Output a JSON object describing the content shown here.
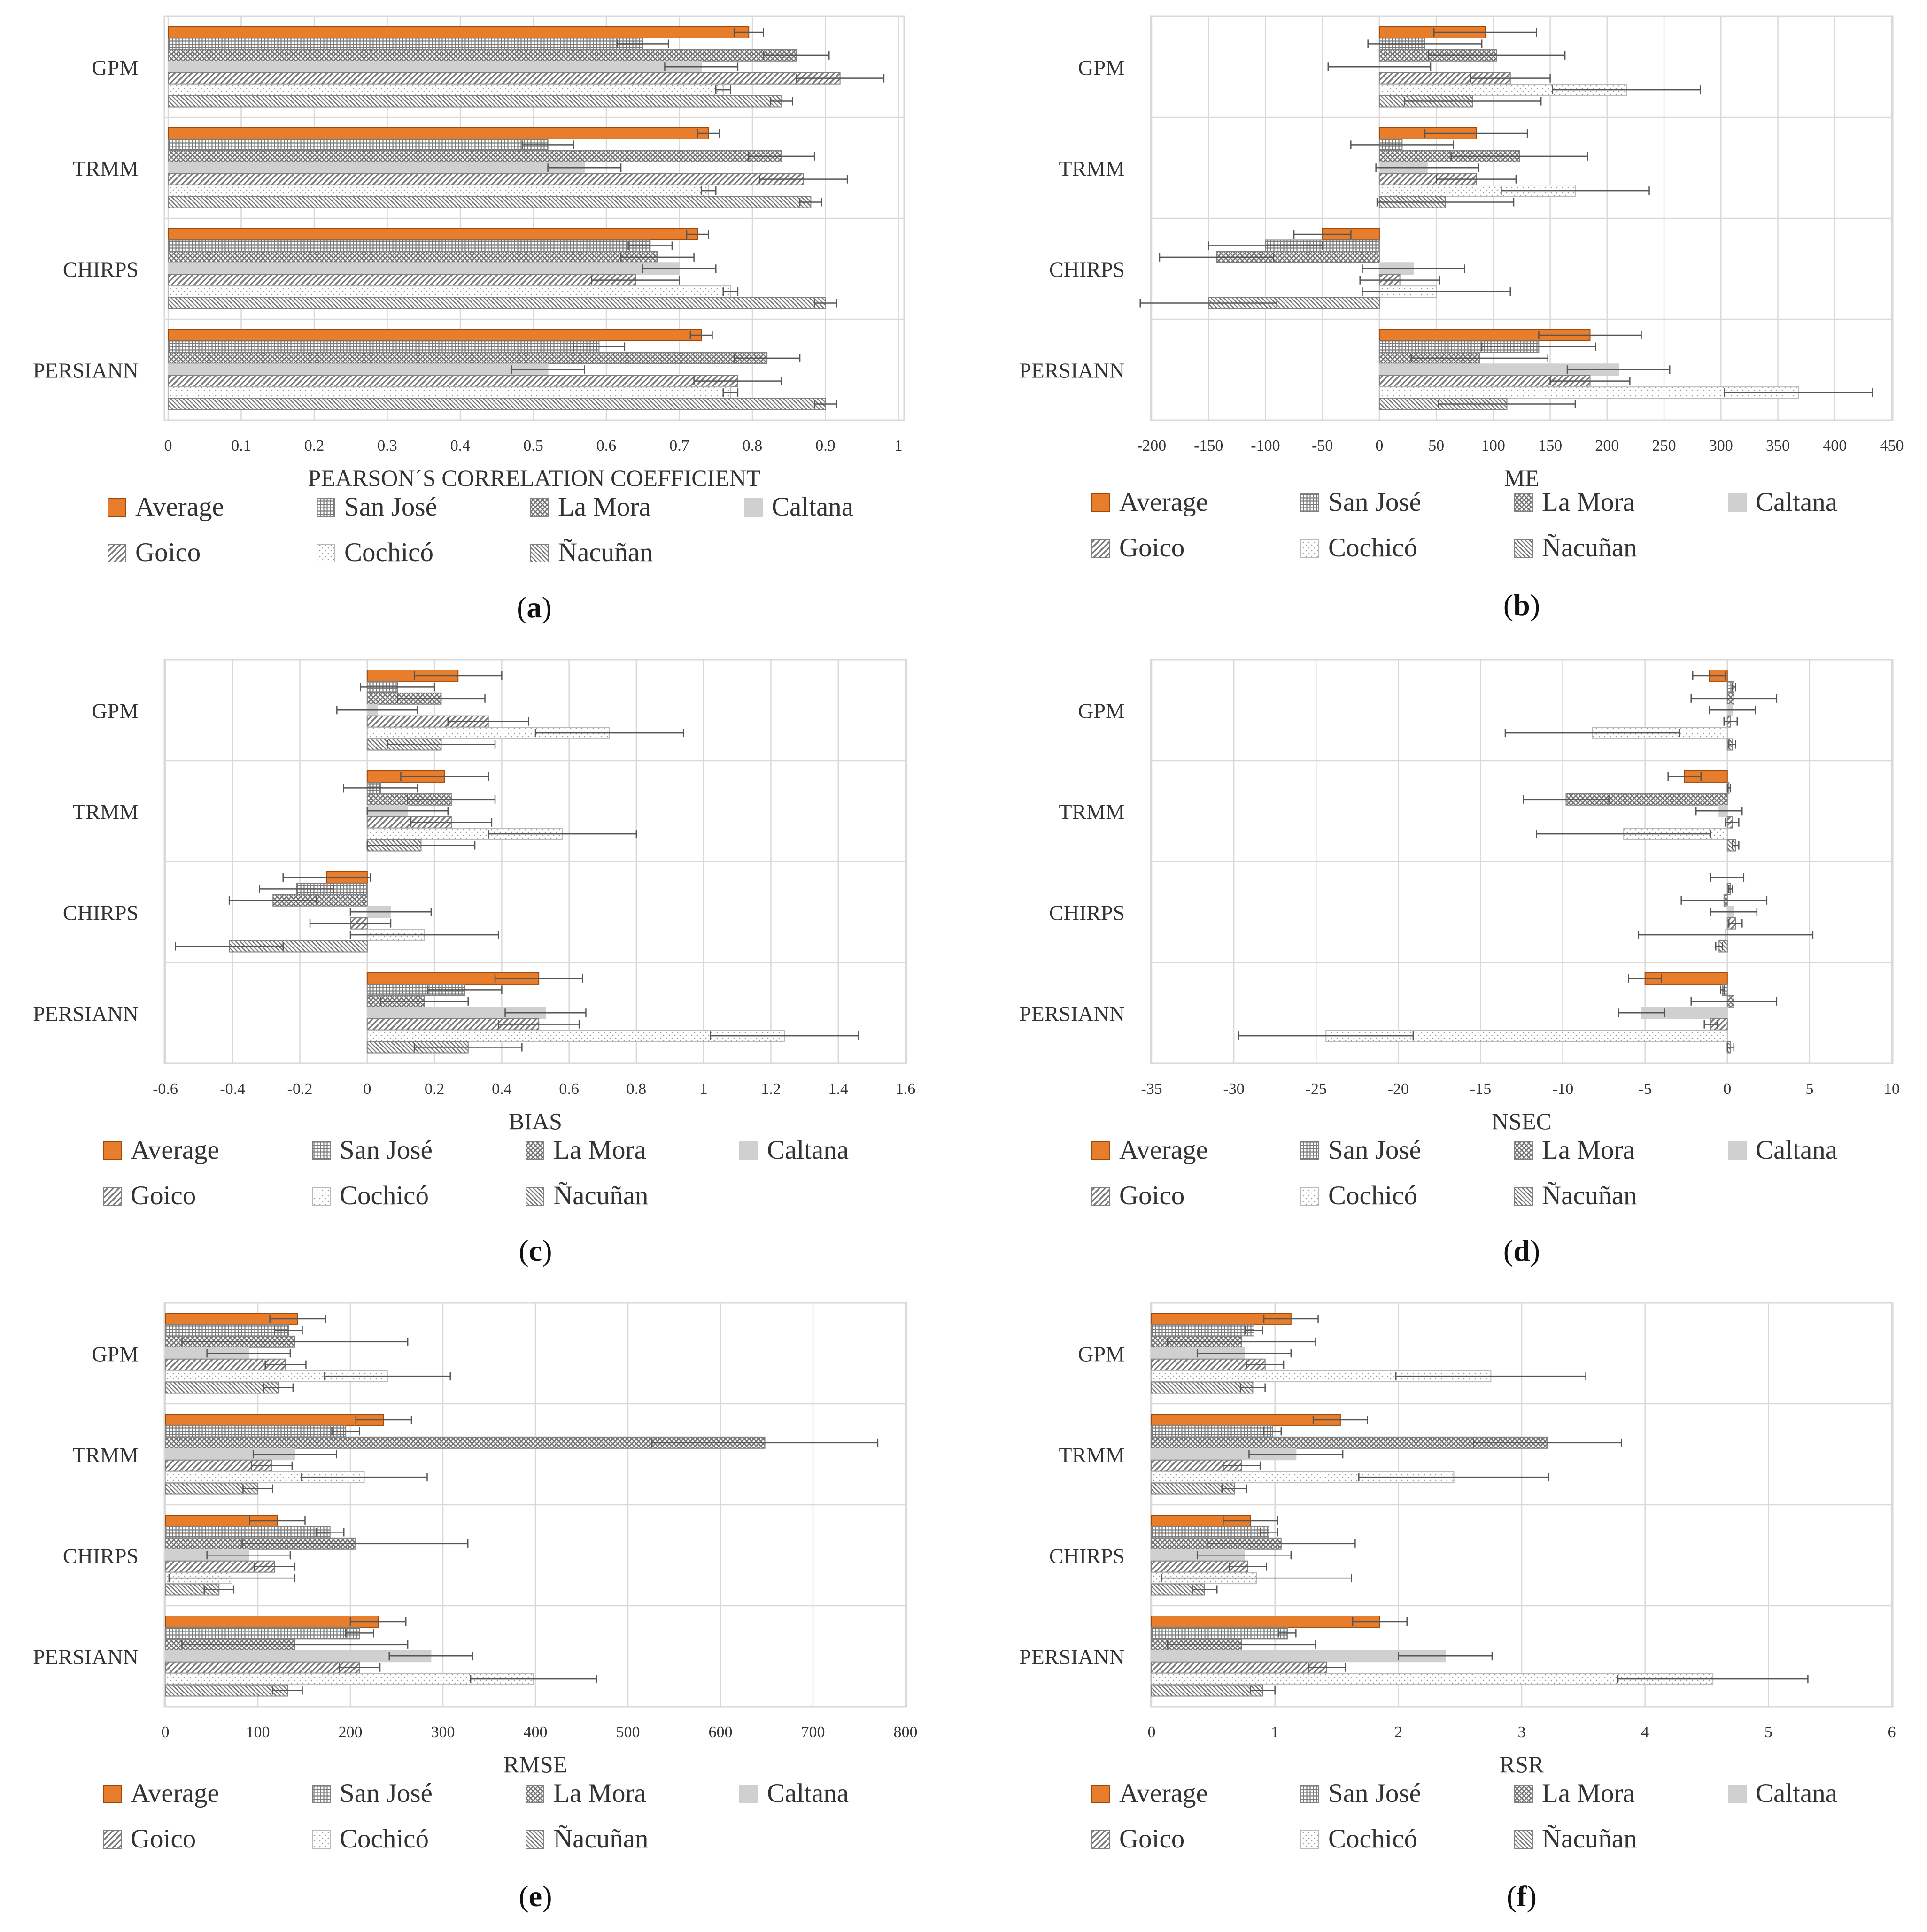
{
  "colors": {
    "average": "#E87D2C",
    "average_edge": "#9A4A10",
    "pattern": "#808080",
    "pattern_light": "#b9b9b9",
    "caltana": "#d0d0d0",
    "grid": "#d9d9d9",
    "frame": "#d9d9d9",
    "errorbar": "#555555"
  },
  "legend_labels": [
    "Average",
    "San José",
    "La Mora",
    "Caltana",
    "Goico",
    "Cochicó",
    "Ñacuñan"
  ],
  "chart_data": [
    {
      "id": "a",
      "type": "bar",
      "orientation": "horizontal",
      "panel_label": "(a)",
      "xlabel": "PEARSON´S CORRELATION COEFFICIENT",
      "xlim": [
        0,
        1
      ],
      "ticks": [
        0,
        0.1,
        0.2,
        0.3,
        0.4,
        0.5,
        0.6,
        0.7,
        0.8,
        0.9,
        1
      ],
      "tick_labels": [
        "0",
        "0.1",
        "0.2",
        "0.3",
        "0.4",
        "0.5",
        "0.6",
        "0.7",
        "0.8",
        "0.9",
        "1"
      ],
      "categories": [
        "GPM",
        "TRMM",
        "CHIRPS",
        "PERSIANN"
      ],
      "series": [
        {
          "name": "Average",
          "values": [
            0.795,
            0.74,
            0.725,
            0.73
          ],
          "errors": [
            0.02,
            0.015,
            0.015,
            0.015
          ]
        },
        {
          "name": "San José",
          "values": [
            0.65,
            0.52,
            0.66,
            0.59
          ],
          "errors": [
            0.035,
            0.035,
            0.03,
            0.035
          ]
        },
        {
          "name": "La Mora",
          "values": [
            0.86,
            0.84,
            0.67,
            0.82
          ],
          "errors": [
            0.045,
            0.045,
            0.05,
            0.045
          ]
        },
        {
          "name": "Caltana",
          "values": [
            0.73,
            0.57,
            0.7,
            0.52
          ],
          "errors": [
            0.05,
            0.05,
            0.05,
            0.05
          ]
        },
        {
          "name": "Goico",
          "values": [
            0.92,
            0.87,
            0.64,
            0.78
          ],
          "errors": [
            0.06,
            0.06,
            0.06,
            0.06
          ]
        },
        {
          "name": "Cochicó",
          "values": [
            0.76,
            0.74,
            0.77,
            0.77
          ],
          "errors": [
            0.01,
            0.01,
            0.01,
            0.01
          ]
        },
        {
          "name": "Ñacuñan",
          "values": [
            0.84,
            0.88,
            0.9,
            0.9
          ],
          "errors": [
            0.015,
            0.015,
            0.015,
            0.015
          ]
        }
      ]
    },
    {
      "id": "b",
      "type": "bar",
      "orientation": "horizontal",
      "panel_label": "(b)",
      "xlabel": "ME",
      "xlim": [
        -200,
        450
      ],
      "ticks": [
        -200,
        -150,
        -100,
        -50,
        0,
        50,
        100,
        150,
        200,
        250,
        300,
        350,
        400,
        450
      ],
      "tick_labels": [
        "-200",
        "-150",
        "-100",
        "-50",
        "0",
        "50",
        "100",
        "150",
        "200",
        "250",
        "300",
        "350",
        "400",
        "450"
      ],
      "categories": [
        "GPM",
        "TRMM",
        "CHIRPS",
        "PERSIANN"
      ],
      "series": [
        {
          "name": "Average",
          "values": [
            93,
            85,
            -50,
            185
          ],
          "errors": [
            45,
            45,
            25,
            45
          ]
        },
        {
          "name": "San José",
          "values": [
            40,
            20,
            -100,
            140
          ],
          "errors": [
            50,
            45,
            50,
            50
          ]
        },
        {
          "name": "La Mora",
          "values": [
            103,
            123,
            -143,
            88
          ],
          "errors": [
            60,
            60,
            50,
            60
          ]
        },
        {
          "name": "Caltana",
          "values": [
            0,
            42,
            30,
            210
          ],
          "errors": [
            45,
            45,
            45,
            45
          ]
        },
        {
          "name": "Goico",
          "values": [
            115,
            85,
            18,
            185
          ],
          "errors": [
            35,
            35,
            35,
            35
          ]
        },
        {
          "name": "Cochicó",
          "values": [
            217,
            172,
            50,
            368
          ],
          "errors": [
            65,
            65,
            65,
            65
          ]
        },
        {
          "name": "Ñacuñan",
          "values": [
            82,
            58,
            -150,
            112
          ],
          "errors": [
            60,
            60,
            60,
            60
          ]
        }
      ]
    },
    {
      "id": "c",
      "type": "bar",
      "orientation": "horizontal",
      "panel_label": "(c)",
      "xlabel": "BIAS",
      "xlim": [
        -0.6,
        1.6
      ],
      "ticks": [
        -0.6,
        -0.4,
        -0.2,
        0,
        0.2,
        0.4,
        0.6,
        0.8,
        1,
        1.2,
        1.4,
        1.6
      ],
      "tick_labels": [
        "-0.6",
        "-0.4",
        "-0.2",
        "0",
        "0.2",
        "0.4",
        "0.6",
        "0.8",
        "1",
        "1.2",
        "1.4",
        "1.6"
      ],
      "categories": [
        "GPM",
        "TRMM",
        "CHIRPS",
        "PERSIANN"
      ],
      "series": [
        {
          "name": "Average",
          "values": [
            0.27,
            0.23,
            -0.12,
            0.51
          ],
          "errors": [
            0.13,
            0.13,
            0.13,
            0.13
          ]
        },
        {
          "name": "San José",
          "values": [
            0.09,
            0.04,
            -0.21,
            0.29
          ],
          "errors": [
            0.11,
            0.11,
            0.11,
            0.11
          ]
        },
        {
          "name": "La Mora",
          "values": [
            0.22,
            0.25,
            -0.28,
            0.17
          ],
          "errors": [
            0.13,
            0.13,
            0.13,
            0.13
          ]
        },
        {
          "name": "Caltana",
          "values": [
            0.03,
            0.12,
            0.07,
            0.53
          ],
          "errors": [
            0.12,
            0.12,
            0.12,
            0.12
          ]
        },
        {
          "name": "Goico",
          "values": [
            0.36,
            0.25,
            -0.05,
            0.51
          ],
          "errors": [
            0.12,
            0.12,
            0.12,
            0.12
          ]
        },
        {
          "name": "Cochicó",
          "values": [
            0.72,
            0.58,
            0.17,
            1.24
          ],
          "errors": [
            0.22,
            0.22,
            0.22,
            0.22
          ]
        },
        {
          "name": "Ñacuñan",
          "values": [
            0.22,
            0.16,
            -0.41,
            0.3
          ],
          "errors": [
            0.16,
            0.16,
            0.16,
            0.16
          ]
        }
      ]
    },
    {
      "id": "d",
      "type": "bar",
      "orientation": "horizontal",
      "panel_label": "(d)",
      "xlabel": "NSEC",
      "xlim": [
        -35,
        10
      ],
      "ticks": [
        -35,
        -30,
        -25,
        -20,
        -15,
        -10,
        -5,
        0,
        5,
        10
      ],
      "tick_labels": [
        "-35",
        "-30",
        "-25",
        "-20",
        "-15",
        "-10",
        "-5",
        "0",
        "5",
        "10"
      ],
      "categories": [
        "GPM",
        "TRMM",
        "CHIRPS",
        "PERSIANN"
      ],
      "series": [
        {
          "name": "Average",
          "values": [
            -1.1,
            -2.6,
            0,
            -5
          ],
          "errors": [
            1,
            1,
            1,
            1
          ]
        },
        {
          "name": "San José",
          "values": [
            0.4,
            0.1,
            0.2,
            -0.3
          ],
          "errors": [
            0.1,
            0.1,
            0.1,
            0.1
          ]
        },
        {
          "name": "La Mora",
          "values": [
            0.4,
            -9.8,
            -0.2,
            0.4
          ],
          "errors": [
            2.6,
            2.6,
            2.6,
            2.6
          ]
        },
        {
          "name": "Caltana",
          "values": [
            0.3,
            -0.5,
            0.4,
            -5.2
          ],
          "errors": [
            1.4,
            1.4,
            1.4,
            1.4
          ]
        },
        {
          "name": "Goico",
          "values": [
            0.2,
            0.3,
            0.5,
            -1
          ],
          "errors": [
            0.4,
            0.4,
            0.4,
            0.4
          ]
        },
        {
          "name": "Cochicó",
          "values": [
            -8.2,
            -6.3,
            -0.1,
            -24.4
          ],
          "errors": [
            5.3,
            5.3,
            5.3,
            5.3
          ]
        },
        {
          "name": "Ñacuñan",
          "values": [
            0.3,
            0.5,
            -0.5,
            0.2
          ],
          "errors": [
            0.2,
            0.2,
            0.2,
            0.2
          ]
        }
      ]
    },
    {
      "id": "e",
      "type": "bar",
      "orientation": "horizontal",
      "panel_label": "(e)",
      "xlabel": "RMSE",
      "xlim": [
        0,
        800
      ],
      "ticks": [
        0,
        100,
        200,
        300,
        400,
        500,
        600,
        700,
        800
      ],
      "tick_labels": [
        "0",
        "100",
        "200",
        "300",
        "400",
        "500",
        "600",
        "700",
        "800"
      ],
      "categories": [
        "GPM",
        "TRMM",
        "CHIRPS",
        "PERSIANN"
      ],
      "series": [
        {
          "name": "Average",
          "values": [
            143,
            236,
            121,
            230
          ],
          "errors": [
            30,
            30,
            30,
            30
          ]
        },
        {
          "name": "San José",
          "values": [
            133,
            195,
            178,
            210
          ],
          "errors": [
            15,
            15,
            15,
            15
          ]
        },
        {
          "name": "La Mora",
          "values": [
            140,
            648,
            205,
            140
          ],
          "errors": [
            122,
            122,
            122,
            122
          ]
        },
        {
          "name": "Caltana",
          "values": [
            90,
            140,
            90,
            287
          ],
          "errors": [
            45,
            45,
            45,
            45
          ]
        },
        {
          "name": "Goico",
          "values": [
            130,
            115,
            118,
            210
          ],
          "errors": [
            22,
            22,
            22,
            22
          ]
        },
        {
          "name": "Cochicó",
          "values": [
            240,
            215,
            72,
            398
          ],
          "errors": [
            68,
            68,
            68,
            68
          ]
        },
        {
          "name": "Ñacuñan",
          "values": [
            122,
            100,
            58,
            132
          ],
          "errors": [
            16,
            16,
            16,
            16
          ]
        }
      ]
    },
    {
      "id": "f",
      "type": "bar",
      "orientation": "horizontal",
      "panel_label": "(f)",
      "xlabel": "RSR",
      "xlim": [
        0,
        6
      ],
      "ticks": [
        0,
        1,
        2,
        3,
        4,
        5,
        6
      ],
      "tick_labels": [
        "0",
        "1",
        "2",
        "3",
        "4",
        "5",
        "6"
      ],
      "categories": [
        "GPM",
        "TRMM",
        "CHIRPS",
        "PERSIANN"
      ],
      "series": [
        {
          "name": "Average",
          "values": [
            1.13,
            1.53,
            0.8,
            1.85
          ],
          "errors": [
            0.22,
            0.22,
            0.22,
            0.22
          ]
        },
        {
          "name": "San José",
          "values": [
            0.83,
            0.98,
            0.95,
            1.1
          ],
          "errors": [
            0.07,
            0.07,
            0.07,
            0.07
          ]
        },
        {
          "name": "La Mora",
          "values": [
            0.73,
            3.21,
            1.05,
            0.73
          ],
          "errors": [
            0.6,
            0.6,
            0.6,
            0.6
          ]
        },
        {
          "name": "Caltana",
          "values": [
            0.75,
            1.17,
            0.75,
            2.38
          ],
          "errors": [
            0.38,
            0.38,
            0.38,
            0.38
          ]
        },
        {
          "name": "Goico",
          "values": [
            0.92,
            0.73,
            0.78,
            1.42
          ],
          "errors": [
            0.15,
            0.15,
            0.15,
            0.15
          ]
        },
        {
          "name": "Cochicó",
          "values": [
            2.75,
            2.45,
            0.85,
            4.55
          ],
          "errors": [
            0.77,
            0.77,
            0.77,
            0.77
          ]
        },
        {
          "name": "Ñacuñan",
          "values": [
            0.82,
            0.67,
            0.43,
            0.9
          ],
          "errors": [
            0.1,
            0.1,
            0.1,
            0.1
          ]
        }
      ]
    }
  ]
}
